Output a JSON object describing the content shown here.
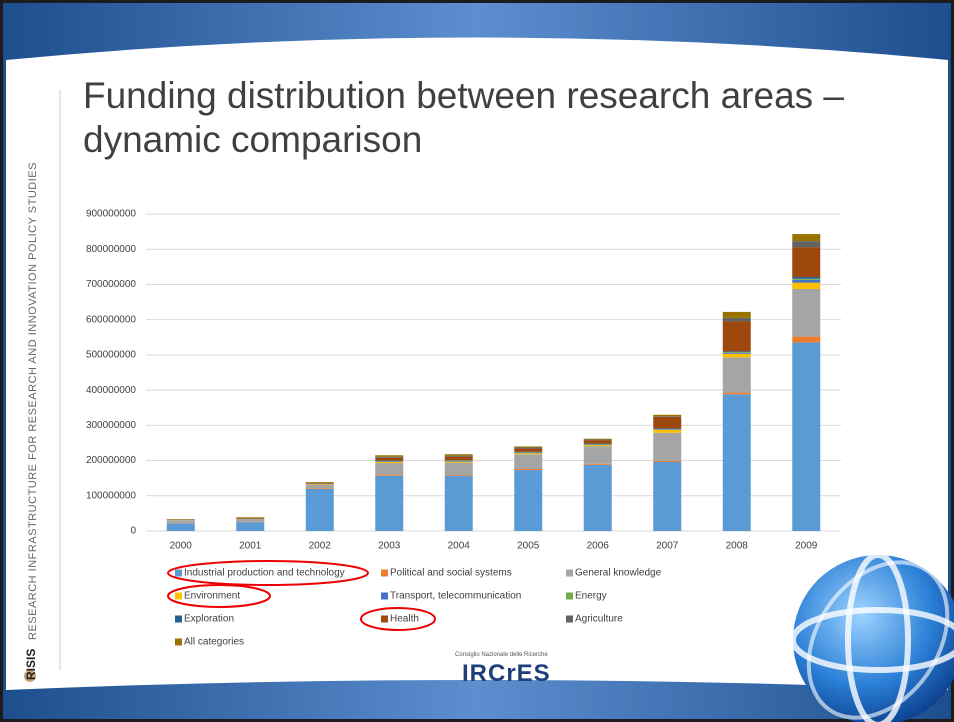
{
  "sidebar": "RESEARCH INFRASTRUCTURE FOR RESEARCH AND INNOVATION POLICY STUDIES",
  "brand": "RISIS",
  "logo": {
    "caption": "Consiglio Nazionale delle Ricerche",
    "name": "IRCrES"
  },
  "chart_data": {
    "type": "stacked_bar",
    "title": "Funding distribution between research areas – dynamic comparison",
    "categories": [
      "2000",
      "2001",
      "2002",
      "2003",
      "2004",
      "2005",
      "2006",
      "2007",
      "2008",
      "2009"
    ],
    "ylim": [
      0,
      900000000
    ],
    "yticks": [
      0,
      100000000,
      200000000,
      300000000,
      400000000,
      500000000,
      600000000,
      700000000,
      800000000,
      900000000
    ],
    "grid": true,
    "legend": "bottom",
    "series": [
      {
        "name": "Industrial production and technology",
        "color": "#5b9bd5",
        "values": [
          22000000,
          25000000,
          120000000,
          157000000,
          157000000,
          173000000,
          188000000,
          196000000,
          388000000,
          535000000
        ]
      },
      {
        "name": "Political and social systems",
        "color": "#ed7d31",
        "values": [
          1000000,
          1000000,
          2000000,
          3000000,
          2000000,
          3000000,
          3000000,
          3000000,
          5000000,
          17000000
        ]
      },
      {
        "name": "General knowledge",
        "color": "#a5a5a5",
        "values": [
          8000000,
          8000000,
          10000000,
          33000000,
          35000000,
          42000000,
          50000000,
          80000000,
          100000000,
          135000000
        ]
      },
      {
        "name": "Environment",
        "color": "#ffc000",
        "values": [
          500000,
          500000,
          2000000,
          3000000,
          3000000,
          3000000,
          3000000,
          8000000,
          10000000,
          18000000
        ]
      },
      {
        "name": "Transport, telecommunication",
        "color": "#4472c4",
        "values": [
          500000,
          500000,
          1000000,
          2000000,
          2000000,
          2000000,
          2000000,
          2000000,
          3000000,
          8000000
        ]
      },
      {
        "name": "Energy",
        "color": "#70ad47",
        "values": [
          0,
          0,
          0,
          1000000,
          1000000,
          1000000,
          1000000,
          1000000,
          2000000,
          3000000
        ]
      },
      {
        "name": "Exploration",
        "color": "#255e91",
        "values": [
          0,
          0,
          0,
          1000000,
          1000000,
          1000000,
          1000000,
          1000000,
          2000000,
          5000000
        ]
      },
      {
        "name": "Health",
        "color": "#9e480e",
        "values": [
          1000000,
          2000000,
          2000000,
          8000000,
          10000000,
          9000000,
          10000000,
          33000000,
          85000000,
          85000000
        ]
      },
      {
        "name": "Agriculture",
        "color": "#636363",
        "values": [
          0,
          0,
          0,
          3000000,
          3000000,
          3000000,
          2000000,
          2000000,
          10000000,
          17000000
        ]
      },
      {
        "name": "All categories",
        "color": "#997300",
        "values": [
          1000000,
          2000000,
          2000000,
          4000000,
          4000000,
          3000000,
          2000000,
          4000000,
          17000000,
          20000000
        ]
      }
    ]
  }
}
